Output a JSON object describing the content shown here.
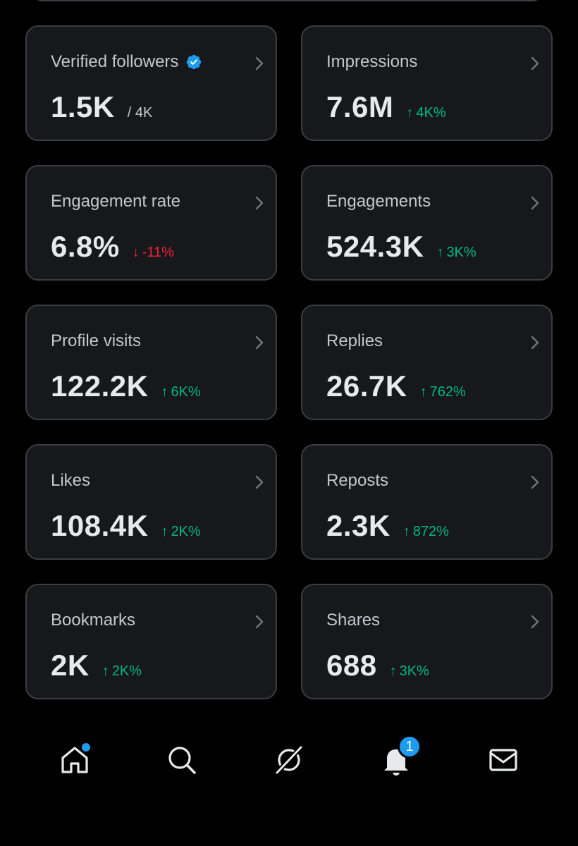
{
  "accent_color": "#1d9bf0",
  "positive_color": "#00ba7c",
  "negative_color": "#f4212e",
  "cards": [
    {
      "label": "Verified followers",
      "value": "1.5K",
      "sub": "/ 4K",
      "verified": true
    },
    {
      "label": "Impressions",
      "value": "7.6M",
      "delta": "4K%",
      "delta_direction": "up"
    },
    {
      "label": "Engagement rate",
      "value": "6.8%",
      "delta": "-11%",
      "delta_direction": "down"
    },
    {
      "label": "Engagements",
      "value": "524.3K",
      "delta": "3K%",
      "delta_direction": "up"
    },
    {
      "label": "Profile visits",
      "value": "122.2K",
      "delta": "6K%",
      "delta_direction": "up"
    },
    {
      "label": "Replies",
      "value": "26.7K",
      "delta": "762%",
      "delta_direction": "up"
    },
    {
      "label": "Likes",
      "value": "108.4K",
      "delta": "2K%",
      "delta_direction": "up"
    },
    {
      "label": "Reposts",
      "value": "2.3K",
      "delta": "872%",
      "delta_direction": "up"
    },
    {
      "label": "Bookmarks",
      "value": "2K",
      "delta": "2K%",
      "delta_direction": "up"
    },
    {
      "label": "Shares",
      "value": "688",
      "delta": "3K%",
      "delta_direction": "up"
    }
  ],
  "icons": {
    "up_arrow": "↑",
    "down_arrow": "↓"
  },
  "nav": {
    "items": [
      "home-icon",
      "search-icon",
      "grok-icon",
      "bell-icon",
      "mail-icon"
    ],
    "notification_count": "1"
  }
}
